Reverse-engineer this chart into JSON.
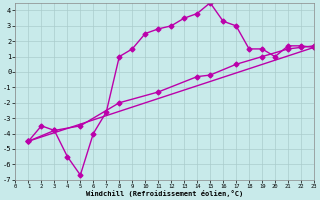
{
  "xlabel": "Windchill (Refroidissement éolien,°C)",
  "background_color": "#c8eaea",
  "grid_color": "#aacccc",
  "line_color": "#bb00aa",
  "xlim": [
    0,
    23
  ],
  "ylim": [
    -7,
    4.5
  ],
  "xticks": [
    0,
    1,
    2,
    3,
    4,
    5,
    6,
    7,
    8,
    9,
    10,
    11,
    12,
    13,
    14,
    15,
    16,
    17,
    18,
    19,
    20,
    21,
    22,
    23
  ],
  "yticks": [
    -7,
    -6,
    -5,
    -4,
    -3,
    -2,
    -1,
    0,
    1,
    2,
    3,
    4
  ],
  "series1_x": [
    1,
    2,
    3,
    4,
    5,
    6,
    7,
    8,
    9,
    10,
    11,
    12,
    13,
    14,
    15,
    16,
    17,
    18,
    19,
    20,
    21,
    22,
    23
  ],
  "series1_y": [
    -4.5,
    -3.5,
    -3.8,
    -5.5,
    -6.7,
    -4.0,
    -2.6,
    1.0,
    1.5,
    2.5,
    2.8,
    3.0,
    3.5,
    3.8,
    4.5,
    3.3,
    3.0,
    1.5,
    1.5,
    1.0,
    1.7,
    1.7,
    1.6
  ],
  "series2_x": [
    1,
    3,
    5,
    8,
    11,
    14,
    15,
    17,
    19,
    21,
    22,
    23
  ],
  "series2_y": [
    -4.5,
    -3.8,
    -3.5,
    -2.0,
    -1.3,
    -0.3,
    -0.2,
    0.5,
    1.0,
    1.5,
    1.6,
    1.7
  ],
  "series3_x": [
    1,
    23
  ],
  "series3_y": [
    -4.5,
    1.6
  ],
  "marker": "D",
  "markersize": 2.5,
  "linewidth": 1.0
}
